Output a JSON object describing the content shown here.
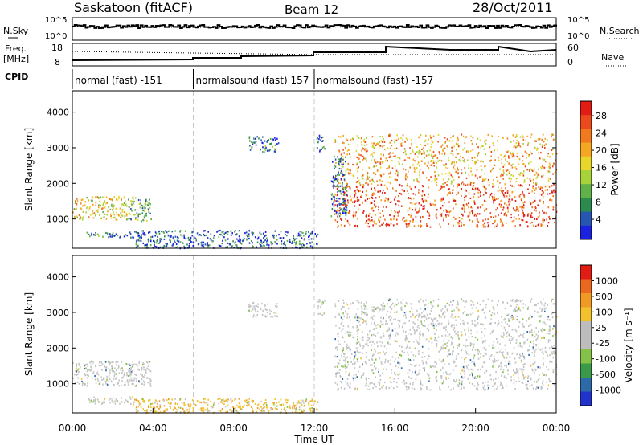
{
  "header": {
    "station": "Saskatoon (fitACF)",
    "beam": "Beam 12",
    "date": "28/Oct/2011"
  },
  "mini_panels": {
    "nsky_label": "N.Sky",
    "nsearch_label": "N.Search",
    "left_ticks_top": [
      "10^5",
      "10^0"
    ],
    "right_ticks_top": [
      "10^5",
      "10^0"
    ],
    "freq_label": [
      "Freq.",
      "[MHz]"
    ],
    "freq_ticks": [
      "18",
      "8"
    ],
    "nave_label": "Nave",
    "nave_ticks": [
      "60",
      "0"
    ],
    "cpid_label": "CPID",
    "cpid_segments": [
      {
        "label": "normal (fast) -151",
        "start_hour": 0,
        "end_hour": 6
      },
      {
        "label": "normalsound (fast) 157",
        "start_hour": 6,
        "end_hour": 12
      },
      {
        "label": "normalsound (fast) -157",
        "start_hour": 12,
        "end_hour": 24
      }
    ]
  },
  "chart_data": [
    {
      "type": "heatmap",
      "name": "power",
      "ylabel": "Slant Range [km]",
      "xlim": [
        0,
        24
      ],
      "ylim": [
        180,
        4600
      ],
      "yticks": [
        1000,
        2000,
        3000,
        4000
      ],
      "colorbar": {
        "label": "Power [dB]",
        "ticks": [
          "28",
          "24",
          "20",
          "16",
          "12",
          "8",
          "4"
        ],
        "colors": [
          "#1a22e0",
          "#2855b0",
          "#2d8a4e",
          "#61b04a",
          "#a8d23a",
          "#e8d62a",
          "#f5a623",
          "#f07a20",
          "#ea4a1c",
          "#e01c14"
        ]
      },
      "regions": [
        {
          "t0": 0.0,
          "t1": 2.7,
          "r0": 1000,
          "r1": 1650,
          "level": 0.55
        },
        {
          "t0": 2.7,
          "t1": 3.9,
          "r0": 950,
          "r1": 1650,
          "level": 0.35
        },
        {
          "t0": 0.7,
          "t1": 3.2,
          "r0": 500,
          "r1": 650,
          "level": 0.2
        },
        {
          "t0": 3.0,
          "t1": 12.2,
          "r0": 200,
          "r1": 700,
          "level": 0.15
        },
        {
          "t0": 8.7,
          "t1": 10.2,
          "r0": 2900,
          "r1": 3350,
          "level": 0.2
        },
        {
          "t0": 12.1,
          "t1": 12.5,
          "r0": 2900,
          "r1": 3400,
          "level": 0.15
        },
        {
          "t0": 13.0,
          "t1": 24.0,
          "r0": 800,
          "r1": 2000,
          "level": 0.85
        },
        {
          "t0": 13.0,
          "t1": 24.0,
          "r0": 2000,
          "r1": 3400,
          "level": 0.65
        },
        {
          "t0": 12.8,
          "t1": 13.6,
          "r0": 1100,
          "r1": 2800,
          "level": 0.15
        }
      ]
    },
    {
      "type": "heatmap",
      "name": "velocity",
      "ylabel": "Slant Range [km]",
      "xlabel": "Time UT",
      "xlim": [
        0,
        24
      ],
      "ylim": [
        180,
        4600
      ],
      "yticks": [
        1000,
        2000,
        3000,
        4000
      ],
      "xticks": [
        "00:00",
        "04:00",
        "08:00",
        "12:00",
        "16:00",
        "20:00",
        "00:00"
      ],
      "colorbar": {
        "label": "Velocity [m s⁻¹]",
        "ticks": [
          "1000",
          "500",
          "100",
          "25",
          "-25",
          "-100",
          "-500",
          "-1000"
        ],
        "colors": [
          "#2233cc",
          "#2e6aa8",
          "#3a9a4a",
          "#86c24a",
          "#bdbdbd",
          "#bdbdbd",
          "#f2c12e",
          "#f09a26",
          "#ea6820",
          "#e01c14"
        ]
      },
      "regions": [
        {
          "t0": 0.0,
          "t1": 3.9,
          "r0": 950,
          "r1": 1650,
          "level": "grey"
        },
        {
          "t0": 0.7,
          "t1": 3.2,
          "r0": 450,
          "r1": 650,
          "level": "grey"
        },
        {
          "t0": 3.0,
          "t1": 12.2,
          "r0": 200,
          "r1": 600,
          "level": "orange"
        },
        {
          "t0": 8.7,
          "t1": 10.2,
          "r0": 2900,
          "r1": 3300,
          "level": "grey"
        },
        {
          "t0": 12.1,
          "t1": 12.5,
          "r0": 2900,
          "r1": 3400,
          "level": "grey"
        },
        {
          "t0": 13.0,
          "t1": 24.0,
          "r0": 850,
          "r1": 2100,
          "level": "grey"
        },
        {
          "t0": 13.0,
          "t1": 24.0,
          "r0": 2100,
          "r1": 3400,
          "level": "grey"
        }
      ]
    }
  ]
}
